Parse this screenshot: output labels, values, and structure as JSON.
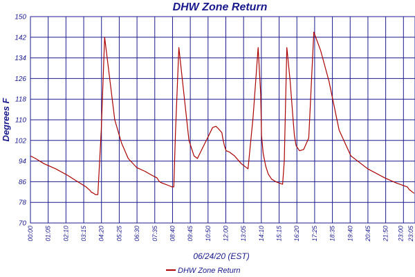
{
  "chart_data": {
    "type": "line",
    "title": "DHW Zone Return",
    "xlabel": "06/24/20 (EST)",
    "ylabel": "Degrees F",
    "ylim": [
      70,
      150
    ],
    "yticks": [
      "150",
      "142",
      "134",
      "126",
      "118",
      "110",
      "102",
      "94",
      "86",
      "78",
      "70"
    ],
    "xticks": [
      "00:00",
      "01:05",
      "02:10",
      "03:15",
      "04:20",
      "05:25",
      "06:30",
      "07:35",
      "08:40",
      "09:45",
      "10:50",
      "12:00",
      "13:05",
      "14:10",
      "15:15",
      "16:20",
      "17:25",
      "18:35",
      "19:40",
      "20:45",
      "21:50",
      "23:00",
      "23:05"
    ],
    "grid": true,
    "legend_position": "bottom",
    "colors": {
      "series": "#aa0000",
      "axis": "#1a1a8c"
    },
    "series": [
      {
        "name": "DHW Zone Return",
        "x": [
          0.0,
          0.3,
          0.8,
          1.5,
          2.2,
          2.8,
          3.3,
          3.55,
          3.6,
          3.75,
          3.85,
          4.0,
          4.2,
          4.4,
          4.7,
          5.0,
          5.4,
          5.8,
          6.3,
          6.8,
          7.2,
          7.5,
          7.55,
          7.65,
          7.8,
          8.0,
          8.2,
          8.4,
          8.5,
          8.6,
          8.8,
          9.1,
          9.4,
          9.7,
          9.9,
          10.2,
          10.5,
          10.8,
          11.0,
          11.15,
          11.35,
          11.4,
          11.5,
          11.6,
          11.8,
          12.1,
          12.5,
          12.9,
          13.2,
          13.5,
          13.65,
          13.7,
          13.8,
          13.95,
          14.1,
          14.3,
          14.55,
          14.75,
          14.95,
          15.05,
          15.2,
          15.4,
          15.55,
          15.65,
          15.75,
          15.95,
          16.2,
          16.5,
          16.8,
          17.2,
          17.7,
          18.3,
          19.0,
          20.0,
          21.0,
          21.7,
          22.35,
          22.45,
          22.55,
          22.65,
          22.75
        ],
        "values": [
          96,
          95,
          93,
          91,
          88.5,
          86,
          84,
          82.5,
          82,
          81.5,
          81,
          81,
          106,
          142,
          126,
          110,
          101,
          95,
          91.5,
          90,
          88.5,
          87.5,
          87,
          86,
          85.5,
          85,
          84.5,
          84,
          84,
          105,
          138,
          120,
          102,
          96,
          95,
          99,
          103,
          107,
          107.5,
          106.5,
          105,
          103,
          100,
          98,
          97.5,
          96,
          93,
          91,
          111,
          138,
          120,
          104,
          97,
          92,
          89,
          87,
          86,
          85.5,
          85,
          94,
          138,
          125,
          112,
          104,
          100,
          98,
          98.5,
          103,
          144,
          137,
          125,
          106,
          96,
          91,
          87.5,
          85.5,
          84,
          83,
          82.5,
          82,
          81.5
        ]
      }
    ]
  }
}
